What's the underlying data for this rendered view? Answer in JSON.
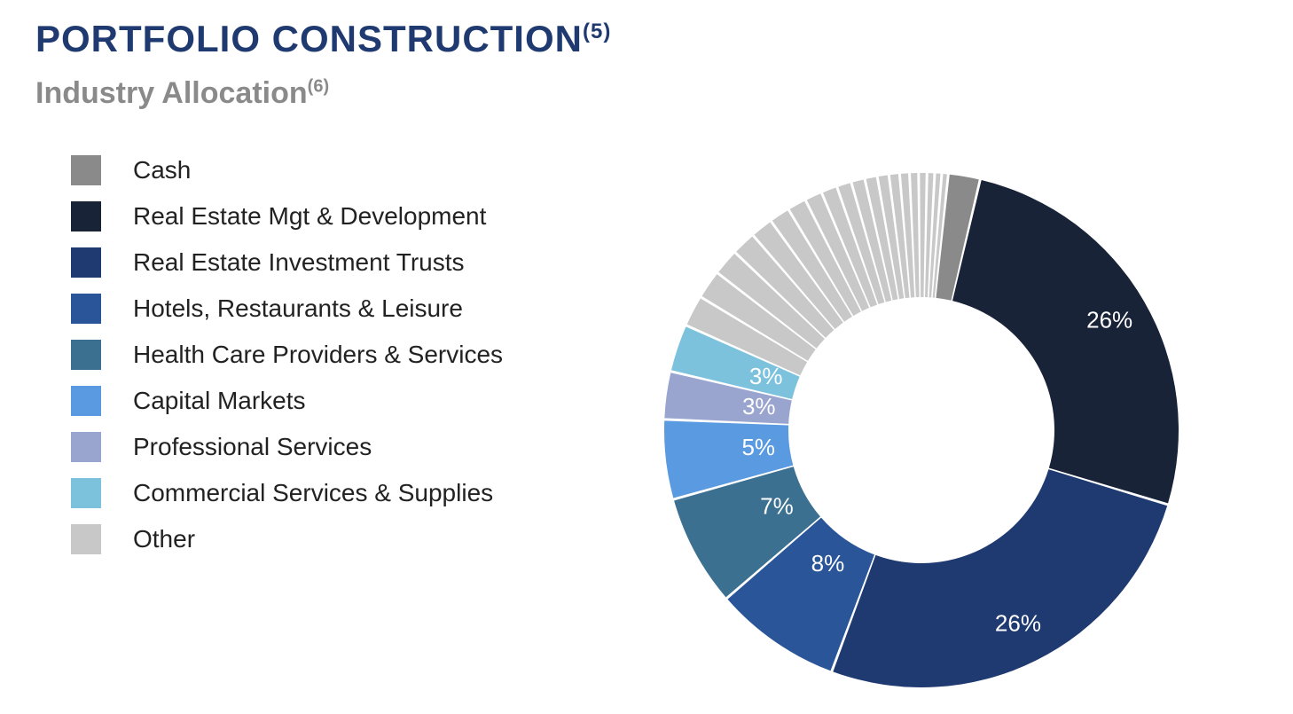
{
  "title_main": "PORTFOLIO CONSTRUCTION",
  "title_sup": "(5)",
  "subtitle_main": "Industry Allocation",
  "subtitle_sup": "(6)",
  "title_color": "#1f3a70",
  "subtitle_color": "#8a8a8a",
  "background_color": "#ffffff",
  "chart": {
    "type": "donut",
    "outer_radius": 290,
    "inner_radius": 150,
    "label_fontsize": 26,
    "label_color": "#ffffff",
    "gap_deg": 0.6,
    "other_sliver_count": 20,
    "start_angle_deg": 6,
    "slices": [
      {
        "name": "Cash",
        "value": 2,
        "color": "#8a8a8a",
        "show_label": false
      },
      {
        "name": "Real Estate Mgt & Development",
        "value": 26,
        "color": "#182338",
        "show_label": true,
        "label": "26%"
      },
      {
        "name": "Real Estate Investment Trusts",
        "value": 26,
        "color": "#1f3a70",
        "show_label": true,
        "label": "26%"
      },
      {
        "name": "Hotels, Restaurants & Leisure",
        "value": 8,
        "color": "#2a5599",
        "show_label": true,
        "label": "8%"
      },
      {
        "name": "Health Care Providers & Services",
        "value": 7,
        "color": "#3b7091",
        "show_label": true,
        "label": "7%"
      },
      {
        "name": "Capital Markets",
        "value": 5,
        "color": "#5a9ae0",
        "show_label": true,
        "label": "5%"
      },
      {
        "name": "Professional Services",
        "value": 3,
        "color": "#9aa5cf",
        "show_label": true,
        "label": "3%"
      },
      {
        "name": "Commercial Services & Supplies",
        "value": 3,
        "color": "#7cc2dd",
        "show_label": true,
        "label": "3%"
      },
      {
        "name": "Other",
        "value": 20,
        "color": "#c8c8c8",
        "show_label": false,
        "is_other": true
      }
    ]
  },
  "legend": {
    "swatch_size": 34,
    "label_fontsize": 28,
    "items": [
      {
        "label": "Cash",
        "color": "#8a8a8a"
      },
      {
        "label": "Real Estate Mgt & Development",
        "color": "#182338"
      },
      {
        "label": "Real Estate Investment Trusts",
        "color": "#1f3a70"
      },
      {
        "label": "Hotels, Restaurants & Leisure",
        "color": "#2a5599"
      },
      {
        "label": "Health Care Providers & Services",
        "color": "#3b7091"
      },
      {
        "label": "Capital Markets",
        "color": "#5a9ae0"
      },
      {
        "label": "Professional Services",
        "color": "#9aa5cf"
      },
      {
        "label": "Commercial Services & Supplies",
        "color": "#7cc2dd"
      },
      {
        "label": "Other",
        "color": "#c8c8c8"
      }
    ]
  }
}
